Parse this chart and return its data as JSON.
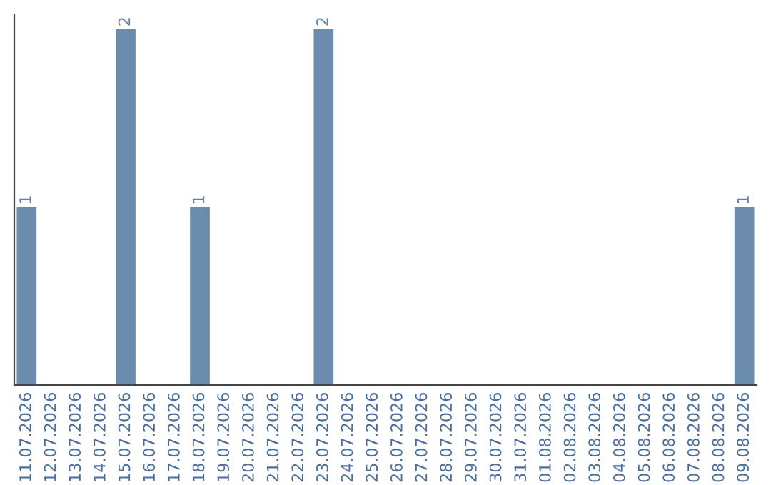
{
  "chart_data": {
    "type": "bar",
    "categories": [
      "11.07.2026",
      "12.07.2026",
      "13.07.2026",
      "14.07.2026",
      "15.07.2026",
      "16.07.2026",
      "17.07.2026",
      "18.07.2026",
      "19.07.2026",
      "20.07.2026",
      "21.07.2026",
      "22.07.2026",
      "23.07.2026",
      "24.07.2026",
      "25.07.2026",
      "26.07.2026",
      "27.07.2026",
      "28.07.2026",
      "29.07.2026",
      "30.07.2026",
      "31.07.2026",
      "01.08.2026",
      "02.08.2026",
      "03.08.2026",
      "04.08.2026",
      "05.08.2026",
      "06.08.2026",
      "07.08.2026",
      "08.08.2026",
      "09.08.2026"
    ],
    "values": [
      1,
      0,
      0,
      0,
      2,
      0,
      0,
      1,
      0,
      0,
      0,
      0,
      2,
      0,
      0,
      0,
      0,
      0,
      0,
      0,
      0,
      0,
      0,
      0,
      0,
      0,
      0,
      0,
      0,
      1
    ],
    "value_labels": [
      "1",
      null,
      null,
      null,
      "2",
      null,
      null,
      "1",
      null,
      null,
      null,
      null,
      "2",
      null,
      null,
      null,
      null,
      null,
      null,
      null,
      null,
      null,
      null,
      null,
      null,
      null,
      null,
      null,
      null,
      "1"
    ],
    "color": "#6b8cad",
    "tick_labels": "x",
    "grid": false,
    "legend": false
  }
}
